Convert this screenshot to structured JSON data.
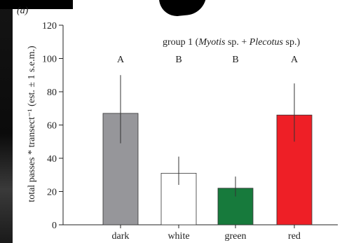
{
  "panel_label": "(a)",
  "chart_data": {
    "type": "bar",
    "title_prefix": "group 1 (",
    "title_species_1": "Myotis",
    "title_middle": " sp. + ",
    "title_species_2": "Plecotus",
    "title_suffix": " sp.)",
    "ylabel": "total passes * transect⁻¹ (est. ± 1 s.e.m.)",
    "ylim": [
      0,
      120
    ],
    "yticks": [
      0,
      20,
      40,
      60,
      80,
      100,
      120
    ],
    "categories": [
      "dark",
      "white",
      "green",
      "red"
    ],
    "values": [
      67,
      31,
      22,
      66
    ],
    "error_low": [
      49,
      24,
      17,
      50
    ],
    "error_high": [
      90,
      41,
      29,
      85
    ],
    "letters": [
      "A",
      "B",
      "B",
      "A"
    ],
    "colors": [
      "#96969a",
      "#ffffff",
      "#177a3c",
      "#ee1f26"
    ],
    "grid": false
  }
}
